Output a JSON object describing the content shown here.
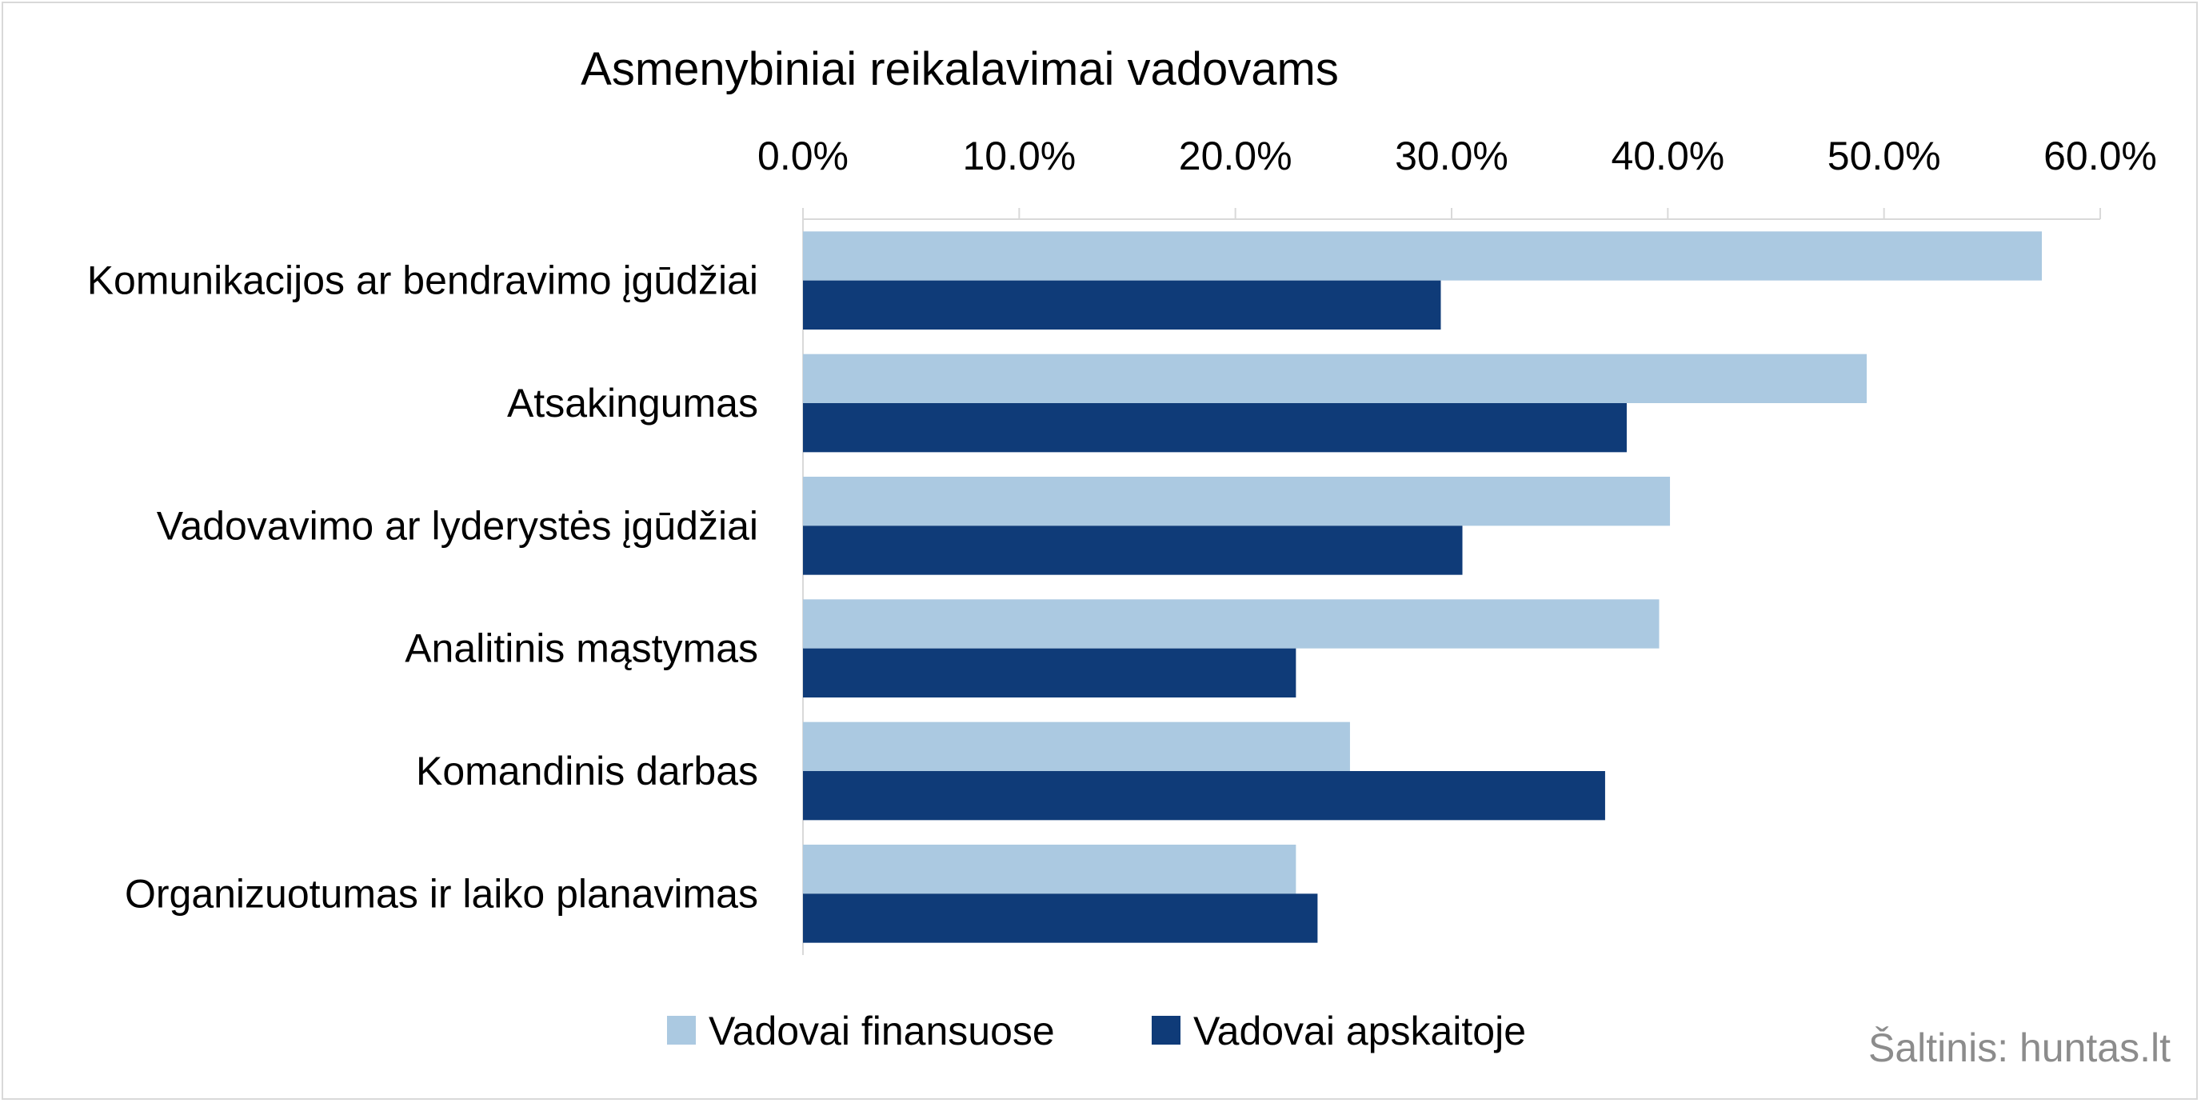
{
  "chart_data": {
    "type": "bar",
    "orientation": "horizontal",
    "title": "Asmenybiniai reikalavimai vadovams",
    "categories": [
      "Komunikacijos ar bendravimo įgūdžiai",
      "Atsakingumas",
      "Vadovavimo ar lyderystės įgūdžiai",
      "Analitinis mąstymas",
      "Komandinis darbas",
      "Organizuotumas ir laiko planavimas"
    ],
    "series": [
      {
        "name": "Vadovai finansuose",
        "color": "#abc9e1",
        "values": [
          57.3,
          49.2,
          40.1,
          39.6,
          25.3,
          22.8
        ]
      },
      {
        "name": "Vadovai apskaitoje",
        "color": "#0f3b78",
        "values": [
          29.5,
          38.1,
          30.5,
          22.8,
          37.1,
          23.8
        ]
      }
    ],
    "xlim": [
      0,
      60
    ],
    "xticks": [
      "0.0%",
      "10.0%",
      "20.0%",
      "30.0%",
      "40.0%",
      "50.0%",
      "60.0%"
    ],
    "x_axis_position": "top",
    "legend_position": "bottom",
    "grid": false
  },
  "source_note": "Šaltinis: huntas.lt"
}
